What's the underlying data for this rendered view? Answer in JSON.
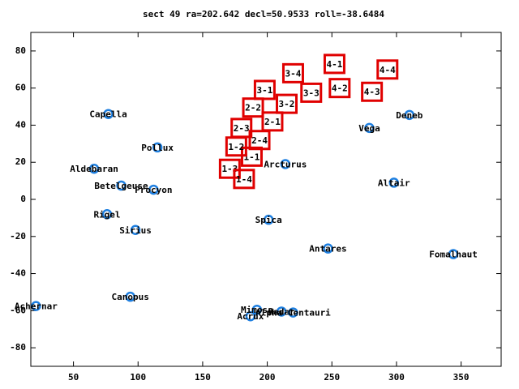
{
  "chart_data": {
    "type": "scatter",
    "title": "sect 49 ra=202.642 decl=50.9533 roll=-38.6484",
    "xlim": [
      17,
      381
    ],
    "ylim": [
      -90,
      90
    ],
    "xticks": [
      50,
      100,
      150,
      200,
      250,
      300,
      350
    ],
    "yticks": [
      -80,
      -60,
      -40,
      -20,
      0,
      20,
      40,
      60,
      80
    ],
    "grid": false,
    "series": [
      {
        "color": "#1e7fe0",
        "marker": "circle",
        "labels": [
          "Capella",
          "Pollux",
          "Aldebaran",
          "Betelgeuse",
          "Procyon",
          "Rigel",
          "Sirius",
          "Canopus",
          "Achernar",
          "Acrux",
          "Mimosa",
          "Hadar",
          "Alpha Centauri",
          "Spica",
          "Arcturus",
          "Antares",
          "Vega",
          "Deneb",
          "Altair",
          "Fomalhaut"
        ],
        "x": [
          77,
          115,
          66,
          87,
          112,
          76,
          98,
          94,
          21,
          187,
          192,
          211,
          220,
          201,
          214,
          247,
          279,
          310,
          298,
          344
        ],
        "values": [
          46,
          28,
          16.5,
          7.4,
          5.2,
          -8,
          -16.5,
          -52.5,
          -57.5,
          -63,
          -59.5,
          -60.5,
          -61,
          -11,
          19,
          -26.5,
          38.5,
          45.5,
          9,
          -29.5
        ]
      },
      {
        "color": "#e00000",
        "marker": "square",
        "labels": [
          "1-1",
          "1-2",
          "1-3",
          "1-4",
          "2-1",
          "2-2",
          "2-3",
          "2-4",
          "3-1",
          "3-2",
          "3-3",
          "3-4",
          "4-1",
          "4-2",
          "4-3",
          "4-4"
        ],
        "x": [
          188,
          176,
          171,
          182,
          204,
          189,
          180,
          194,
          198,
          215,
          234,
          220,
          252,
          256,
          281,
          293
        ],
        "values": [
          23,
          28.5,
          16.5,
          11,
          42,
          49.5,
          38.5,
          32,
          59,
          51.5,
          57.5,
          68,
          73,
          60,
          58,
          70
        ]
      }
    ]
  }
}
